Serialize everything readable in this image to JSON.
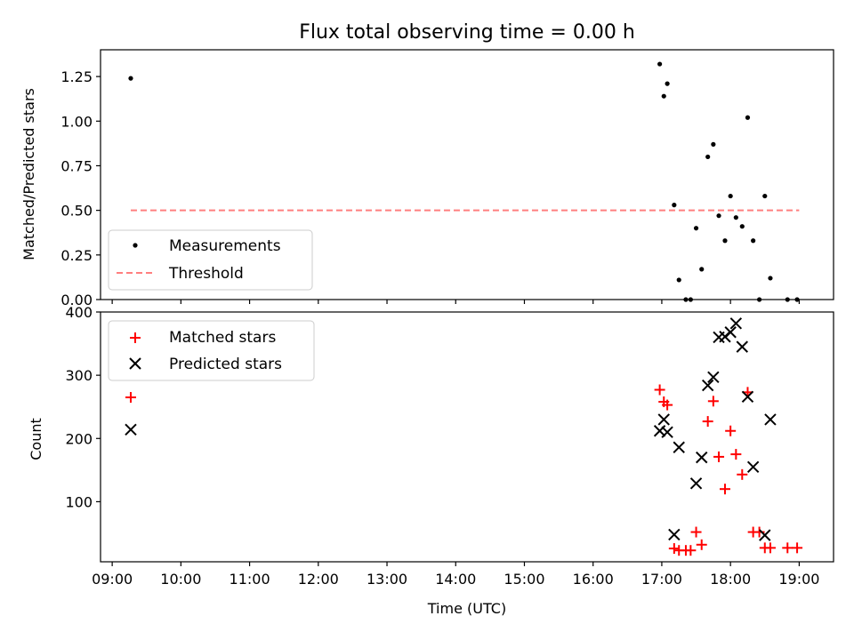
{
  "chart_data": [
    {
      "type": "scatter",
      "title": "Flux total observing time = 0.00 h",
      "ylabel": "Matched/Predicted stars",
      "xlabel": "",
      "xlim": [
        8.83,
        19.5
      ],
      "ylim": [
        0,
        1.4
      ],
      "yticks": [
        0.0,
        0.25,
        0.5,
        0.75,
        1.0,
        1.25
      ],
      "ytick_labels": [
        "0.00",
        "0.25",
        "0.50",
        "0.75",
        "1.00",
        "1.25"
      ],
      "legend": "bottom-left",
      "series": [
        {
          "name": "Measurements",
          "marker": "dot",
          "color": "#000000",
          "points": [
            [
              9.27,
              1.24
            ],
            [
              16.97,
              1.32
            ],
            [
              17.03,
              1.14
            ],
            [
              17.08,
              1.21
            ],
            [
              17.18,
              0.53
            ],
            [
              17.25,
              0.11
            ],
            [
              17.35,
              0.0
            ],
            [
              17.42,
              0.0
            ],
            [
              17.5,
              0.4
            ],
            [
              17.58,
              0.17
            ],
            [
              17.67,
              0.8
            ],
            [
              17.75,
              0.87
            ],
            [
              17.83,
              0.47
            ],
            [
              17.92,
              0.33
            ],
            [
              18.0,
              0.58
            ],
            [
              18.08,
              0.46
            ],
            [
              18.17,
              0.41
            ],
            [
              18.25,
              1.02
            ],
            [
              18.33,
              0.33
            ],
            [
              18.42,
              0.0
            ],
            [
              18.5,
              0.58
            ],
            [
              18.58,
              0.12
            ],
            [
              18.83,
              0.0
            ],
            [
              18.97,
              0.0
            ]
          ]
        },
        {
          "name": "Threshold",
          "marker": "dashed-line",
          "color": "#ff7f7f",
          "points": [
            [
              9.27,
              0.5
            ],
            [
              19.0,
              0.5
            ]
          ]
        }
      ]
    },
    {
      "type": "scatter",
      "title": "",
      "xlabel": "Time (UTC)",
      "ylabel": "Count",
      "xlim": [
        8.83,
        19.5
      ],
      "ylim": [
        5,
        400
      ],
      "xticks": [
        9,
        10,
        11,
        12,
        13,
        14,
        15,
        16,
        17,
        18,
        19
      ],
      "xtick_labels": [
        "09:00",
        "10:00",
        "11:00",
        "12:00",
        "13:00",
        "14:00",
        "15:00",
        "16:00",
        "17:00",
        "18:00",
        "19:00"
      ],
      "yticks": [
        100,
        200,
        300,
        400
      ],
      "ytick_labels": [
        "100",
        "200",
        "300",
        "400"
      ],
      "legend": "top-left",
      "series": [
        {
          "name": "Matched stars",
          "marker": "plus",
          "color": "#ff0000",
          "points": [
            [
              9.27,
              265
            ],
            [
              16.97,
              277
            ],
            [
              17.03,
              258
            ],
            [
              17.08,
              253
            ],
            [
              17.18,
              26
            ],
            [
              17.25,
              23
            ],
            [
              17.35,
              23
            ],
            [
              17.42,
              23
            ],
            [
              17.5,
              52
            ],
            [
              17.58,
              32
            ],
            [
              17.67,
              227
            ],
            [
              17.75,
              259
            ],
            [
              17.83,
              171
            ],
            [
              17.92,
              120
            ],
            [
              18.0,
              212
            ],
            [
              18.08,
              175
            ],
            [
              18.17,
              143
            ],
            [
              18.25,
              273
            ],
            [
              18.33,
              52
            ],
            [
              18.42,
              52
            ],
            [
              18.5,
              27
            ],
            [
              18.58,
              27
            ],
            [
              18.83,
              27
            ],
            [
              18.97,
              27
            ]
          ]
        },
        {
          "name": "Predicted stars",
          "marker": "x",
          "color": "#000000",
          "points": [
            [
              9.27,
              214
            ],
            [
              16.97,
              212
            ],
            [
              17.03,
              230
            ],
            [
              17.08,
              210
            ],
            [
              17.18,
              48
            ],
            [
              17.25,
              186
            ],
            [
              17.5,
              129
            ],
            [
              17.58,
              170
            ],
            [
              17.67,
              284
            ],
            [
              17.75,
              297
            ],
            [
              17.83,
              360
            ],
            [
              17.92,
              361
            ],
            [
              18.0,
              368
            ],
            [
              18.08,
              382
            ],
            [
              18.17,
              345
            ],
            [
              18.25,
              266
            ],
            [
              18.33,
              155
            ],
            [
              18.5,
              47
            ],
            [
              18.58,
              230
            ]
          ]
        }
      ]
    }
  ]
}
